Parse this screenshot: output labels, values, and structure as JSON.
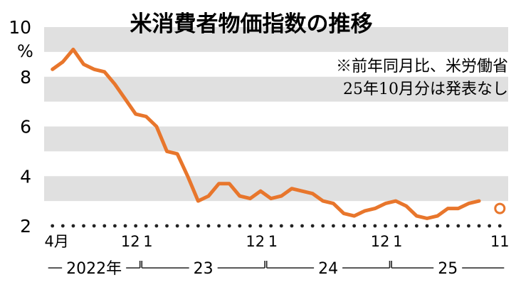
{
  "chart_data": {
    "type": "line",
    "title": "米消費者物価指数の推移",
    "notes": [
      "※前年同月比、米労働省",
      "25年10月分は発表なし"
    ],
    "ylabel": "%",
    "ylim": [
      2,
      10
    ],
    "yticks": [
      2,
      4,
      6,
      8,
      10
    ],
    "y_tick_labels": [
      "2",
      "4",
      "6",
      "8",
      "10"
    ],
    "x_tick_labels": [
      {
        "month": 4,
        "label": "4月"
      },
      {
        "month": 12,
        "label": "12"
      },
      {
        "month": 13,
        "label": "1"
      },
      {
        "month": 24,
        "label": "12"
      },
      {
        "month": 25,
        "label": "1"
      },
      {
        "month": 36,
        "label": "12"
      },
      {
        "month": 37,
        "label": "1"
      },
      {
        "month": 47,
        "label": "11"
      }
    ],
    "year_labels": [
      {
        "label": "2022年",
        "from": 4,
        "to": 12
      },
      {
        "label": "23",
        "from": 13,
        "to": 24
      },
      {
        "label": "24",
        "from": 25,
        "to": 36
      },
      {
        "label": "25",
        "from": 37,
        "to": 47
      }
    ],
    "line_color": "#e8762c",
    "band_color": "#e0e0e0",
    "series": [
      {
        "x": [
          4,
          5,
          6,
          7,
          8,
          9,
          10,
          11,
          12,
          13,
          14,
          15,
          16,
          17,
          18,
          19,
          20,
          21,
          22,
          23,
          24,
          25,
          26,
          27,
          28,
          29,
          30,
          31,
          32,
          33,
          34,
          35,
          36,
          37,
          38,
          39,
          40,
          41,
          42,
          43,
          44,
          45
        ],
        "values": [
          8.3,
          8.6,
          9.1,
          8.5,
          8.3,
          8.2,
          7.7,
          7.1,
          6.5,
          6.4,
          6.0,
          5.0,
          4.9,
          4.0,
          3.0,
          3.2,
          3.7,
          3.7,
          3.2,
          3.1,
          3.4,
          3.1,
          3.2,
          3.5,
          3.4,
          3.3,
          3.0,
          2.9,
          2.5,
          2.4,
          2.6,
          2.7,
          2.9,
          3.0,
          2.8,
          2.4,
          2.3,
          2.4,
          2.7,
          2.7,
          2.9,
          3.0
        ]
      },
      {
        "name": "",
        "x": [
          47
        ],
        "values": [
          2.7
        ],
        "marker": "open-circle"
      }
    ]
  }
}
